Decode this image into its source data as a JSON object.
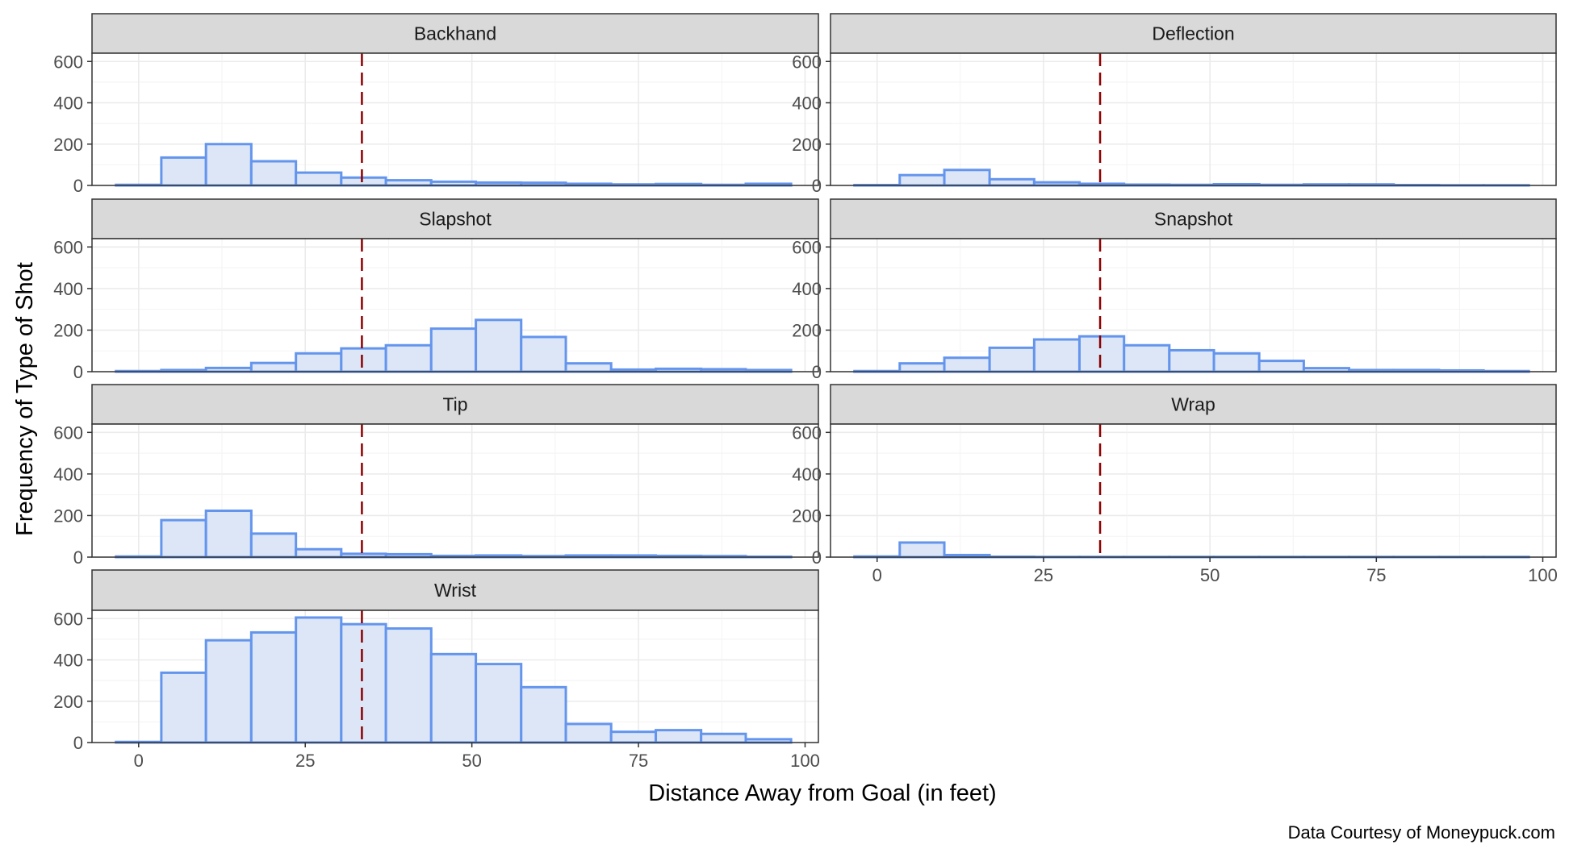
{
  "chart_data": {
    "type": "bar",
    "subtype": "faceted-histogram",
    "xlabel": "Distance Away from Goal (in feet)",
    "ylabel": "Frequency of Type of Shot",
    "caption": "Data Courtesy of Moneypuck.com",
    "xlim": [
      -7,
      102
    ],
    "ylim": [
      0,
      640
    ],
    "x_ticks": [
      0,
      25,
      50,
      75,
      100
    ],
    "y_ticks": [
      0,
      200,
      400,
      600
    ],
    "bin_edges": [
      -3.4,
      3.4,
      10.1,
      16.9,
      23.6,
      30.4,
      37.1,
      43.9,
      50.6,
      57.4,
      64.1,
      70.9,
      77.6,
      84.4,
      91.1,
      97.9
    ],
    "reference_line": {
      "x": 33.5,
      "style": "dashed",
      "color": "#8b0000"
    },
    "bar_fill": "#dce6f7",
    "bar_stroke": "#6495ed",
    "grid": true,
    "strip_fill": "#d9d9d9",
    "panels": [
      {
        "name": "Backhand",
        "counts": [
          3,
          135,
          200,
          117,
          62,
          38,
          25,
          18,
          14,
          13,
          8,
          5,
          7,
          3,
          8
        ]
      },
      {
        "name": "Deflection",
        "counts": [
          2,
          50,
          75,
          30,
          15,
          8,
          4,
          3,
          6,
          3,
          5,
          5,
          2,
          1,
          1
        ]
      },
      {
        "name": "Slapshot",
        "counts": [
          3,
          8,
          18,
          42,
          88,
          112,
          127,
          207,
          249,
          167,
          40,
          10,
          14,
          12,
          8
        ]
      },
      {
        "name": "Snapshot",
        "counts": [
          3,
          40,
          67,
          115,
          155,
          170,
          127,
          103,
          88,
          52,
          17,
          8,
          8,
          6,
          3
        ]
      },
      {
        "name": "Tip",
        "counts": [
          3,
          178,
          223,
          113,
          38,
          16,
          14,
          6,
          8,
          5,
          8,
          8,
          6,
          5,
          2
        ]
      },
      {
        "name": "Wrap",
        "counts": [
          3,
          70,
          10,
          2,
          1,
          1,
          1,
          1,
          1,
          1,
          1,
          1,
          1,
          1,
          1
        ]
      },
      {
        "name": "Wrist",
        "counts": [
          3,
          338,
          495,
          533,
          605,
          573,
          552,
          428,
          380,
          268,
          90,
          52,
          60,
          42,
          16
        ]
      }
    ]
  }
}
